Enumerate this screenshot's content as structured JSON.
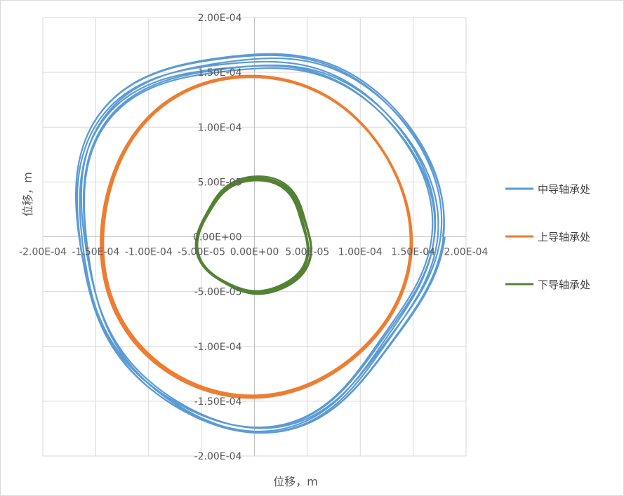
{
  "chart_data": {
    "type": "scatter",
    "xlabel": "位移，m",
    "ylabel": "位移，m",
    "xlim": [
      -0.0002,
      0.0002
    ],
    "ylim": [
      -0.0002,
      0.0002
    ],
    "grid": true,
    "legend_position": "right",
    "x_ticks": [
      {
        "value": -0.0002,
        "label": "-2.00E-04"
      },
      {
        "value": -0.00015,
        "label": "-1.50E-04"
      },
      {
        "value": -0.0001,
        "label": "-1.00E-04"
      },
      {
        "value": -5e-05,
        "label": "-5.00E-05"
      },
      {
        "value": 0,
        "label": "0.00E+00"
      },
      {
        "value": 5e-05,
        "label": "5.00E-05"
      },
      {
        "value": 0.0001,
        "label": "1.00E-04"
      },
      {
        "value": 0.00015,
        "label": "1.50E-04"
      },
      {
        "value": 0.0002,
        "label": "2.00E-04"
      }
    ],
    "y_ticks": [
      {
        "value": 0.0002,
        "label": "2.00E-04"
      },
      {
        "value": 0.00015,
        "label": "1.50E-04"
      },
      {
        "value": 0.0001,
        "label": "1.00E-04"
      },
      {
        "value": 5e-05,
        "label": "5.00E-05"
      },
      {
        "value": 0,
        "label": "0.00E+00"
      },
      {
        "value": -5e-05,
        "label": "-5.00E-05"
      },
      {
        "value": -0.0001,
        "label": "-1.00E-04"
      },
      {
        "value": -0.00015,
        "label": "-1.50E-04"
      },
      {
        "value": -0.0002,
        "label": "-2.00E-04"
      }
    ],
    "series": [
      {
        "name": "中导轴承处",
        "color": "#5b9bd5",
        "base_radius": 0.000168,
        "radius_variation": 1.8e-05,
        "turns": 7,
        "approximate": true
      },
      {
        "name": "上导轴承处",
        "color": "#ed7d31",
        "base_radius": 0.000146,
        "radius_variation": 4e-06,
        "turns": 7,
        "approximate": true
      },
      {
        "name": "下导轴承处",
        "color": "#548235",
        "base_radius": 5.2e-05,
        "radius_variation": 6e-06,
        "turns": 7,
        "approximate": true
      }
    ]
  }
}
